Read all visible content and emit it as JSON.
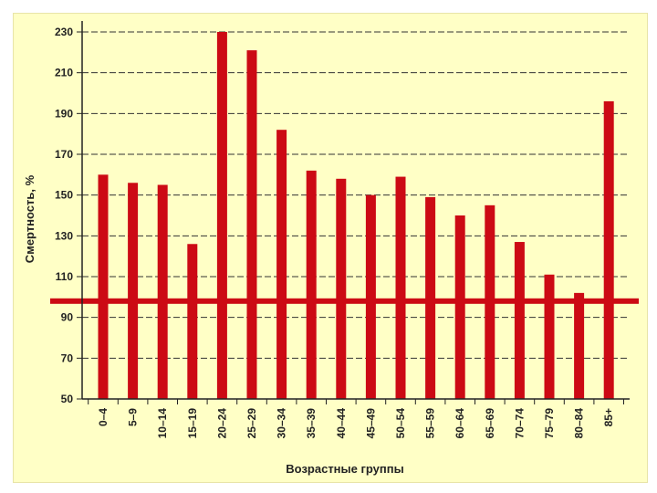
{
  "chart_data": {
    "type": "bar",
    "title": "",
    "xlabel": "Возрастные группы",
    "ylabel": "Смертность, %",
    "categories": [
      "0–4",
      "5–9",
      "10–14",
      "15–19",
      "20–24",
      "25–29",
      "30–34",
      "35–39",
      "40–44",
      "45–49",
      "50–54",
      "55–59",
      "60–64",
      "65–69",
      "70–74",
      "75–79",
      "80–84",
      "85+"
    ],
    "values": [
      160,
      156,
      155,
      126,
      230,
      221,
      182,
      162,
      158,
      150,
      159,
      149,
      140,
      145,
      127,
      111,
      102,
      196
    ],
    "ylim": [
      50,
      230
    ],
    "yticks": [
      50,
      70,
      90,
      110,
      130,
      150,
      170,
      190,
      210,
      230
    ],
    "reference_line": 98,
    "grid": true,
    "colors": {
      "bar": "#cc0a14",
      "reference_line": "#cc0a14",
      "background": "#ffffc6",
      "grid": "#333333",
      "axis": "#222222"
    }
  }
}
